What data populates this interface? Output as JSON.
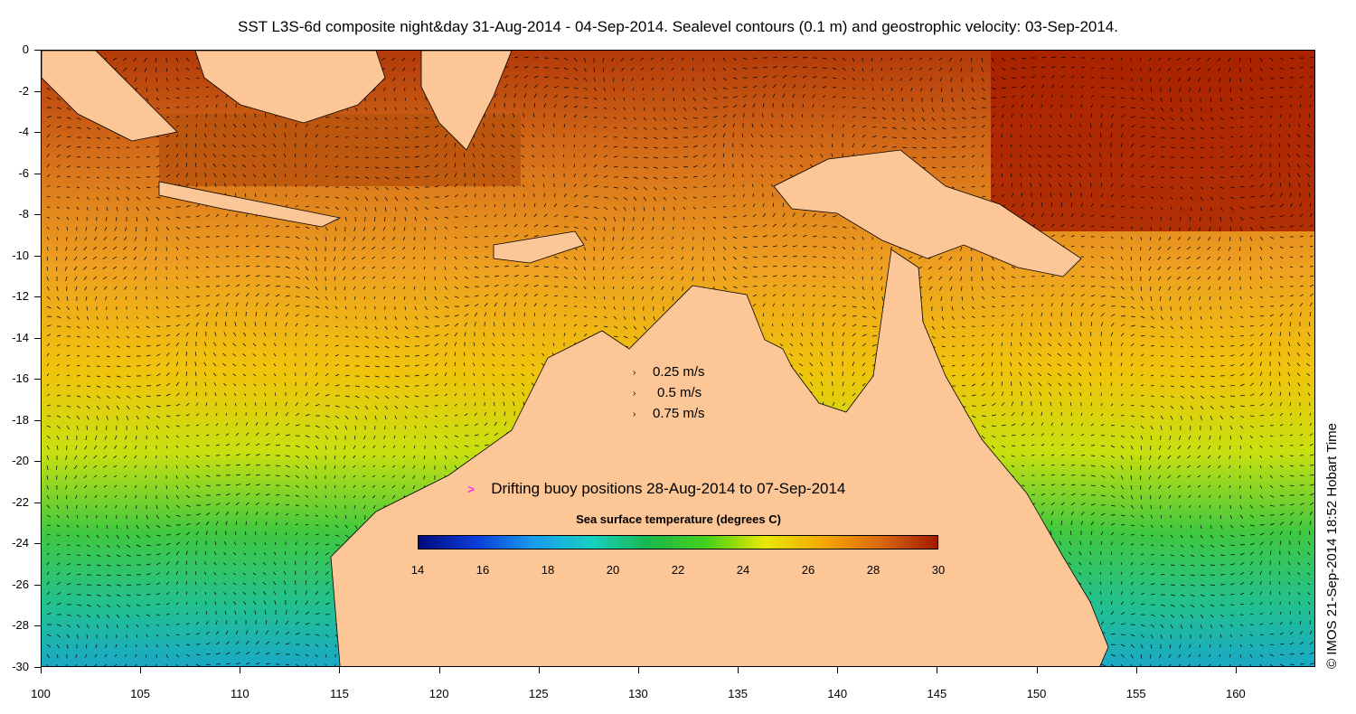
{
  "title": "SST L3S-6d composite night&day 31-Aug-2014 - 04-Sep-2014. Sealevel contours (0.1 m) and geostrophic velocity: 03-Sep-2014.",
  "map": {
    "x_ticks": [
      "100",
      "105",
      "110",
      "115",
      "120",
      "125",
      "130",
      "135",
      "140",
      "145",
      "150",
      "155",
      "160"
    ],
    "y_ticks": [
      "0",
      "-2",
      "-4",
      "-6",
      "-8",
      "-10",
      "-12",
      "-14",
      "-16",
      "-18",
      "-20",
      "-22",
      "-24",
      "-26",
      "-28",
      "-30"
    ],
    "lon_range": [
      100,
      164
    ],
    "lat_range": [
      -30,
      0
    ],
    "land_color": "#fcc696"
  },
  "speed_legend": {
    "items": [
      {
        "label": "0.25 m/s",
        "arrow": "›"
      },
      {
        "label": "0.5 m/s",
        "arrow": "›"
      },
      {
        "label": "0.75 m/s",
        "arrow": "›"
      }
    ]
  },
  "buoy_legend": {
    "symbol": ">",
    "label": "Drifting buoy positions 28-Aug-2014 to 07-Sep-2014",
    "color": "#ff00ff"
  },
  "colorbar": {
    "title": "Sea surface temperature (degrees C)",
    "ticks": [
      "14",
      "16",
      "18",
      "20",
      "22",
      "24",
      "26",
      "28",
      "30"
    ],
    "colors": [
      "#000a7c",
      "#0a3dd8",
      "#1b9bf0",
      "#17d0c0",
      "#19b84a",
      "#46d01a",
      "#e8e800",
      "#f5a800",
      "#dd6a10",
      "#a11a00"
    ]
  },
  "credit": "© IMOS 21-Sep-2014 18:52 Hobart Time"
}
